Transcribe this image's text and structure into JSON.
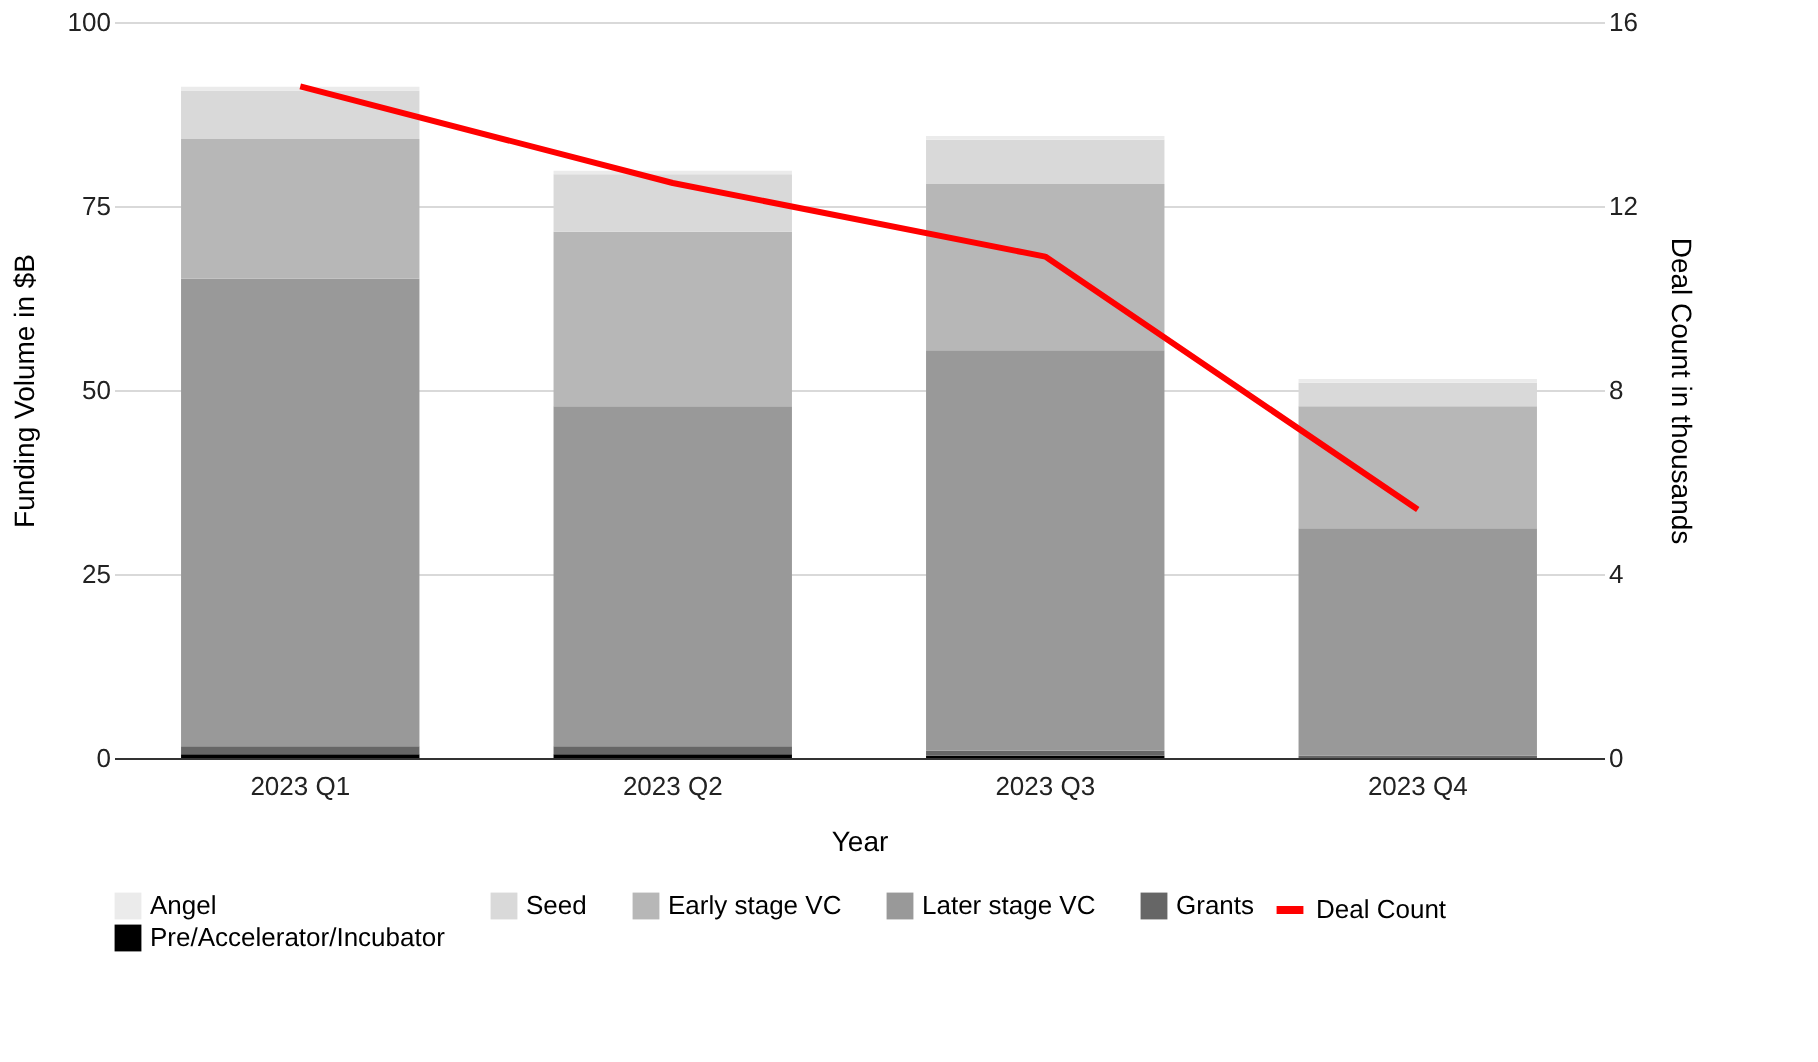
{
  "chart_data": {
    "type": "bar",
    "stacked": true,
    "xlabel": "Year",
    "ylabel": "Funding Volume in $B",
    "y2label": "Deal Count in thousands",
    "categories": [
      "2023 Q1",
      "2023 Q2",
      "2023 Q3",
      "2023 Q4"
    ],
    "series": [
      {
        "name": "Pre/Accelerator/Incubator",
        "color": "#000000",
        "values": [
          0.5,
          0.5,
          0.3,
          0
        ]
      },
      {
        "name": "Grants",
        "color": "#666666",
        "values": [
          1.1,
          1.1,
          0.7,
          0.3
        ]
      },
      {
        "name": "Later stage VC",
        "color": "#999999",
        "values": [
          63.5,
          46.2,
          54.4,
          30.9
        ]
      },
      {
        "name": "Early stage VC",
        "color": "#b7b7b7",
        "values": [
          19,
          23.7,
          22.6,
          16.6
        ]
      },
      {
        "name": "Seed",
        "color": "#d9d9d9",
        "values": [
          6.6,
          7.8,
          6,
          3.2
        ]
      },
      {
        "name": "Angel",
        "color": "#ebebeb",
        "values": [
          0.5,
          0.5,
          0.5,
          0.5
        ]
      },
      {
        "name": "Deal Count",
        "type": "line",
        "axis": "y2",
        "color": "#ff0000",
        "values": [
          14.6,
          12.5,
          10.9,
          5.4
        ]
      }
    ],
    "ylim": [
      0,
      100
    ],
    "yticks": [
      0,
      25,
      50,
      75,
      100
    ],
    "y2lim": [
      0,
      16
    ],
    "y2ticks": [
      0,
      4,
      8,
      12,
      16
    ],
    "grid": "y",
    "legend": "bottom"
  }
}
